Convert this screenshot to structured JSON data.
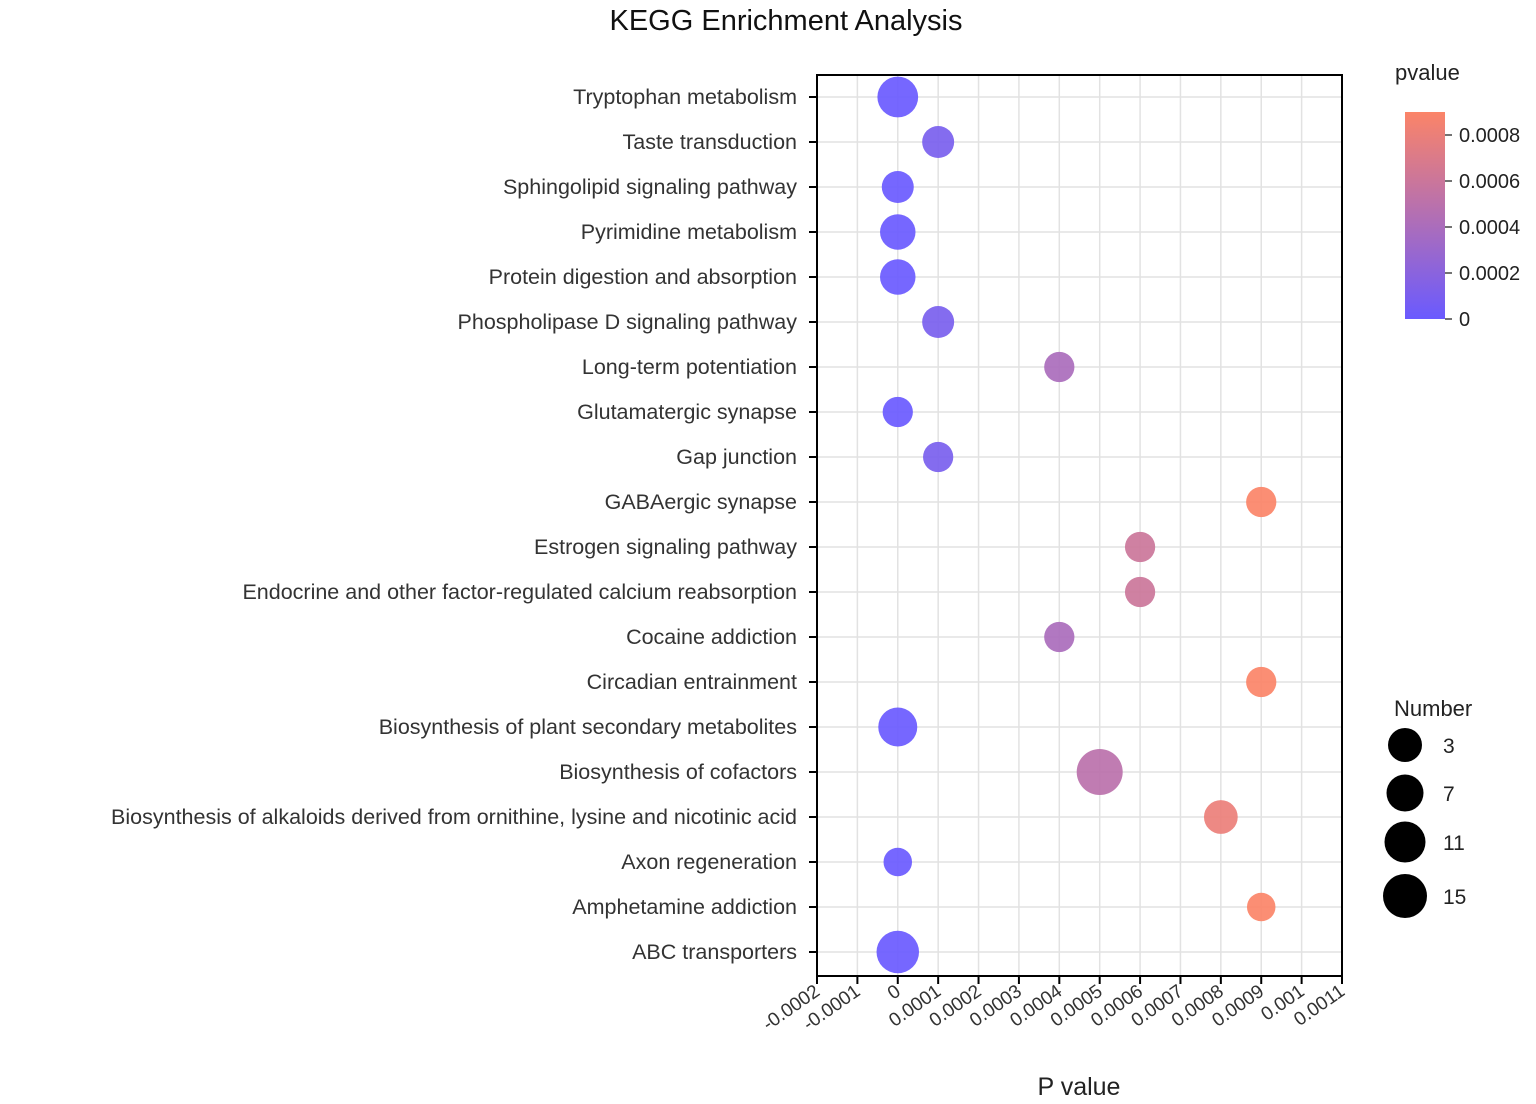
{
  "chart_data": {
    "type": "scatter",
    "title": "KEGG Enrichment Analysis",
    "xlabel": "P value",
    "ylabel": "",
    "xlim": [
      -0.0002,
      0.0011
    ],
    "x_ticks": [
      -0.0002,
      -0.0001,
      0,
      0.0001,
      0.0002,
      0.0003,
      0.0004,
      0.0005,
      0.0006,
      0.0007,
      0.0008,
      0.0009,
      0.001,
      0.0011
    ],
    "x_tick_labels": [
      "-0.0002",
      "-0.0001",
      "0",
      "0.0001",
      "0.0002",
      "0.0003",
      "0.0004",
      "0.0005",
      "0.0006",
      "0.0007",
      "0.0008",
      "0.0009",
      "0.001",
      "0.0011"
    ],
    "grid": true,
    "color_legend": {
      "title": "pvalue",
      "min": 0,
      "max": 0.0009,
      "low_color": "#6a5aff",
      "high_color": "#fb8468",
      "ticks": [
        0,
        0.0002,
        0.0004,
        0.0006,
        0.0008
      ],
      "tick_labels": [
        "0",
        "0.0002",
        "0.0004",
        "0.0006",
        "0.0008"
      ]
    },
    "size_legend": {
      "title": "Number",
      "values": [
        3,
        7,
        11,
        15
      ],
      "labels": [
        "3",
        "7",
        "11",
        "15"
      ]
    },
    "points": [
      {
        "term": "Tryptophan metabolism",
        "pvalue": 0.0,
        "number": 12
      },
      {
        "term": "Taste transduction",
        "pvalue": 0.0001,
        "number": 7
      },
      {
        "term": "Sphingolipid signaling pathway",
        "pvalue": 0.0,
        "number": 7
      },
      {
        "term": "Pyrimidine metabolism",
        "pvalue": 0.0,
        "number": 9
      },
      {
        "term": "Protein digestion and absorption",
        "pvalue": 0.0,
        "number": 9
      },
      {
        "term": "Phospholipase D signaling pathway",
        "pvalue": 0.0001,
        "number": 7
      },
      {
        "term": "Long-term potentiation",
        "pvalue": 0.0004,
        "number": 6
      },
      {
        "term": "Glutamatergic synapse",
        "pvalue": 0.0,
        "number": 6
      },
      {
        "term": "Gap junction",
        "pvalue": 0.0001,
        "number": 6
      },
      {
        "term": "GABAergic synapse",
        "pvalue": 0.0009,
        "number": 6
      },
      {
        "term": "Estrogen signaling pathway",
        "pvalue": 0.0006,
        "number": 6
      },
      {
        "term": "Endocrine and other factor-regulated calcium reabsorption",
        "pvalue": 0.0006,
        "number": 6
      },
      {
        "term": "Cocaine addiction",
        "pvalue": 0.0004,
        "number": 6
      },
      {
        "term": "Circadian entrainment",
        "pvalue": 0.0009,
        "number": 6
      },
      {
        "term": "Biosynthesis of plant secondary metabolites",
        "pvalue": 0.0,
        "number": 11
      },
      {
        "term": "Biosynthesis of cofactors",
        "pvalue": 0.0005,
        "number": 15
      },
      {
        "term": "Biosynthesis of alkaloids derived from ornithine, lysine and nicotinic acid",
        "pvalue": 0.0008,
        "number": 8
      },
      {
        "term": "Axon regeneration",
        "pvalue": 0.0,
        "number": 5
      },
      {
        "term": "Amphetamine addiction",
        "pvalue": 0.0009,
        "number": 5
      },
      {
        "term": "ABC transporters",
        "pvalue": 0.0,
        "number": 13
      }
    ]
  }
}
